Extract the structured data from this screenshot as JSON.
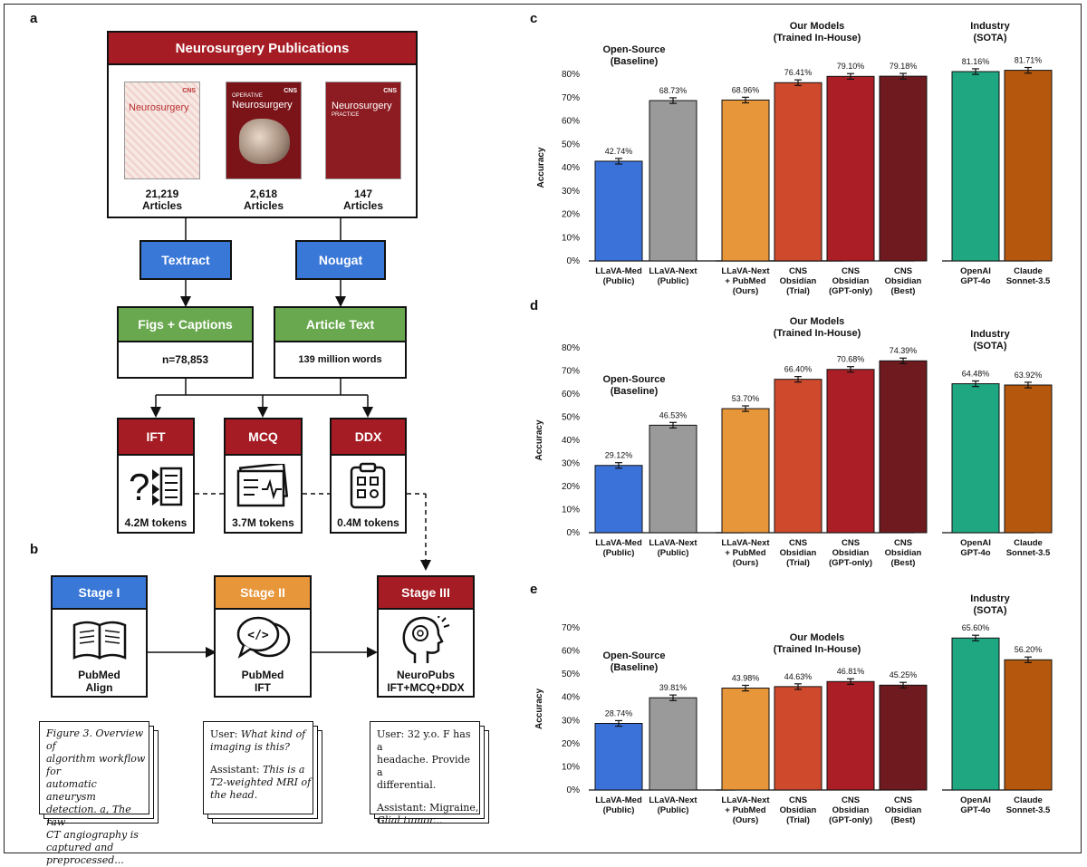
{
  "panels": {
    "a": "a",
    "b": "b",
    "c": "c",
    "d": "d",
    "e": "e"
  },
  "panel_a": {
    "publications_title": "Neurosurgery Publications",
    "journals": [
      {
        "cover_title": "Neurosurgery",
        "count": "21,219",
        "unit": "Articles",
        "color": "#f7e8e4",
        "publisher": "CNS"
      },
      {
        "cover_title": "Neurosurgery",
        "cover_kicker": "OPERATIVE",
        "count": "2,618",
        "unit": "Articles",
        "color": "#7a1419",
        "publisher": "CNS"
      },
      {
        "cover_title": "Neurosurgery",
        "cover_sub": "PRACTICE",
        "count": "147",
        "unit": "Articles",
        "color": "#8c1c22",
        "publisher": "CNS"
      }
    ],
    "tools": [
      "Textract",
      "Nougat"
    ],
    "outputs": [
      {
        "label": "Figs + Captions",
        "value": "n=78,853"
      },
      {
        "label": "Article Text",
        "value": "139 million words"
      }
    ],
    "datasets": [
      {
        "label": "IFT",
        "tokens": "4.2M tokens",
        "icon": "question-list-icon"
      },
      {
        "label": "MCQ",
        "tokens": "3.7M tokens",
        "icon": "medical-chart-icon"
      },
      {
        "label": "DDX",
        "tokens": "0.4M tokens",
        "icon": "clipboard-icon"
      }
    ]
  },
  "panel_b": {
    "stages": [
      {
        "label": "Stage I",
        "line1": "PubMed",
        "line2": "Align",
        "color": "#3a78d8",
        "icon": "book-icon"
      },
      {
        "label": "Stage II",
        "line1": "PubMed",
        "line2": "IFT",
        "color": "#e8963a",
        "icon": "chat-code-icon"
      },
      {
        "label": "Stage III",
        "line1": "NeuroPubs",
        "line2": "IFT+MCQ+DDX",
        "color": "#a61c24",
        "icon": "head-icon"
      }
    ],
    "card1": [
      "Figure 3. Overview of",
      "algorithm workflow for",
      "automatic aneurysm",
      "detection. a, The raw",
      "CT angiography is",
      "captured and",
      "preprocessed..."
    ],
    "card2": {
      "user_prefix": "User: ",
      "user_lines": [
        "What kind of",
        "imaging is this?"
      ],
      "assistant_prefix": "Assistant: ",
      "assistant_lines": [
        "This is a",
        "T2-weighted MRI of",
        "the head."
      ]
    },
    "card3": {
      "user_lines": [
        "User: 32 y.o. F has a",
        "headache. Provide a",
        "differential."
      ],
      "assistant_prefix": "Assistant: ",
      "assistant_lines": [
        "Migraine,",
        "Glial tumor..."
      ]
    }
  },
  "chart_data": [
    {
      "id": "c",
      "type": "bar",
      "ylabel": "Accuracy",
      "ylim": [
        0,
        80
      ],
      "yticks": [
        "0%",
        "10%",
        "20%",
        "30%",
        "40%",
        "50%",
        "60%",
        "70%",
        "80%"
      ],
      "groups": [
        {
          "title": [
            "Open-Source",
            "(Baseline)"
          ]
        },
        {
          "title": [
            "Our Models",
            "(Trained In-House)"
          ]
        },
        {
          "title": [
            "Industry",
            "(SOTA)"
          ]
        }
      ],
      "bars": [
        {
          "label": [
            "LLaVA-Med",
            "(Public)"
          ],
          "value": 42.74,
          "text": "42.74%",
          "color": "#3b72d9"
        },
        {
          "label": [
            "LLaVA-Next",
            "(Public)"
          ],
          "value": 68.73,
          "text": "68.73%",
          "color": "#9a9a9a"
        },
        {
          "label": [
            "LLaVA-Next",
            "+ PubMed",
            "(Ours)"
          ],
          "value": 68.96,
          "text": "68.96%",
          "color": "#e8963a"
        },
        {
          "label": [
            "CNS",
            "Obsidian",
            "(Trial)"
          ],
          "value": 76.41,
          "text": "76.41%",
          "color": "#cf4a2c"
        },
        {
          "label": [
            "CNS",
            "Obsidian",
            "(GPT-only)"
          ],
          "value": 79.1,
          "text": "79.10%",
          "color": "#ab1e26"
        },
        {
          "label": [
            "CNS",
            "Obsidian",
            "(Best)"
          ],
          "value": 79.18,
          "text": "79.18%",
          "color": "#6e1a1e"
        },
        {
          "label": [
            "OpenAI",
            "GPT-4o"
          ],
          "value": 81.16,
          "text": "81.16%",
          "color": "#1ea780"
        },
        {
          "label": [
            "Claude",
            "Sonnet-3.5"
          ],
          "value": 81.71,
          "text": "81.71%",
          "color": "#b5580d"
        }
      ]
    },
    {
      "id": "d",
      "type": "bar",
      "ylabel": "Accuracy",
      "ylim": [
        0,
        80
      ],
      "yticks": [
        "0%",
        "10%",
        "20%",
        "30%",
        "40%",
        "50%",
        "60%",
        "70%",
        "80%"
      ],
      "groups": [
        {
          "title": [
            "Open-Source",
            "(Baseline)"
          ]
        },
        {
          "title": [
            "Our Models",
            "(Trained In-House)"
          ]
        },
        {
          "title": [
            "Industry",
            "(SOTA)"
          ]
        }
      ],
      "bars": [
        {
          "label": [
            "LLaVA-Med",
            "(Public)"
          ],
          "value": 29.12,
          "text": "29.12%",
          "color": "#3b72d9"
        },
        {
          "label": [
            "LLaVA-Next",
            "(Public)"
          ],
          "value": 46.53,
          "text": "46.53%",
          "color": "#9a9a9a"
        },
        {
          "label": [
            "LLaVA-Next",
            "+ PubMed",
            "(Ours)"
          ],
          "value": 53.7,
          "text": "53.70%",
          "color": "#e8963a"
        },
        {
          "label": [
            "CNS",
            "Obsidian",
            "(Trial)"
          ],
          "value": 66.4,
          "text": "66.40%",
          "color": "#cf4a2c"
        },
        {
          "label": [
            "CNS",
            "Obsidian",
            "(GPT-only)"
          ],
          "value": 70.68,
          "text": "70.68%",
          "color": "#ab1e26"
        },
        {
          "label": [
            "CNS",
            "Obsidian",
            "(Best)"
          ],
          "value": 74.39,
          "text": "74.39%",
          "color": "#6e1a1e"
        },
        {
          "label": [
            "OpenAI",
            "GPT-4o"
          ],
          "value": 64.48,
          "text": "64.48%",
          "color": "#1ea780"
        },
        {
          "label": [
            "Claude",
            "Sonnet-3.5"
          ],
          "value": 63.92,
          "text": "63.92%",
          "color": "#b5580d"
        }
      ]
    },
    {
      "id": "e",
      "type": "bar",
      "ylabel": "Accuracy",
      "ylim": [
        0,
        70
      ],
      "yticks": [
        "0%",
        "10%",
        "20%",
        "30%",
        "40%",
        "50%",
        "60%",
        "70%"
      ],
      "groups": [
        {
          "title": [
            "Open-Source",
            "(Baseline)"
          ]
        },
        {
          "title": [
            "Our Models",
            "(Trained In-House)"
          ]
        },
        {
          "title": [
            "Industry",
            "(SOTA)"
          ]
        }
      ],
      "bars": [
        {
          "label": [
            "LLaVA-Med",
            "(Public)"
          ],
          "value": 28.74,
          "text": "28.74%",
          "color": "#3b72d9"
        },
        {
          "label": [
            "LLaVA-Next",
            "(Public)"
          ],
          "value": 39.81,
          "text": "39.81%",
          "color": "#9a9a9a"
        },
        {
          "label": [
            "LLaVA-Next",
            "+ PubMed",
            "(Ours)"
          ],
          "value": 43.98,
          "text": "43.98%",
          "color": "#e8963a"
        },
        {
          "label": [
            "CNS",
            "Obsidian",
            "(Trial)"
          ],
          "value": 44.63,
          "text": "44.63%",
          "color": "#cf4a2c"
        },
        {
          "label": [
            "CNS",
            "Obsidian",
            "(GPT-only)"
          ],
          "value": 46.81,
          "text": "46.81%",
          "color": "#ab1e26"
        },
        {
          "label": [
            "CNS",
            "Obsidian",
            "(Best)"
          ],
          "value": 45.25,
          "text": "45.25%",
          "color": "#6e1a1e"
        },
        {
          "label": [
            "OpenAI",
            "GPT-4o"
          ],
          "value": 65.6,
          "text": "65.60%",
          "color": "#1ea780"
        },
        {
          "label": [
            "Claude",
            "Sonnet-3.5"
          ],
          "value": 56.2,
          "text": "56.20%",
          "color": "#b5580d"
        }
      ]
    }
  ]
}
